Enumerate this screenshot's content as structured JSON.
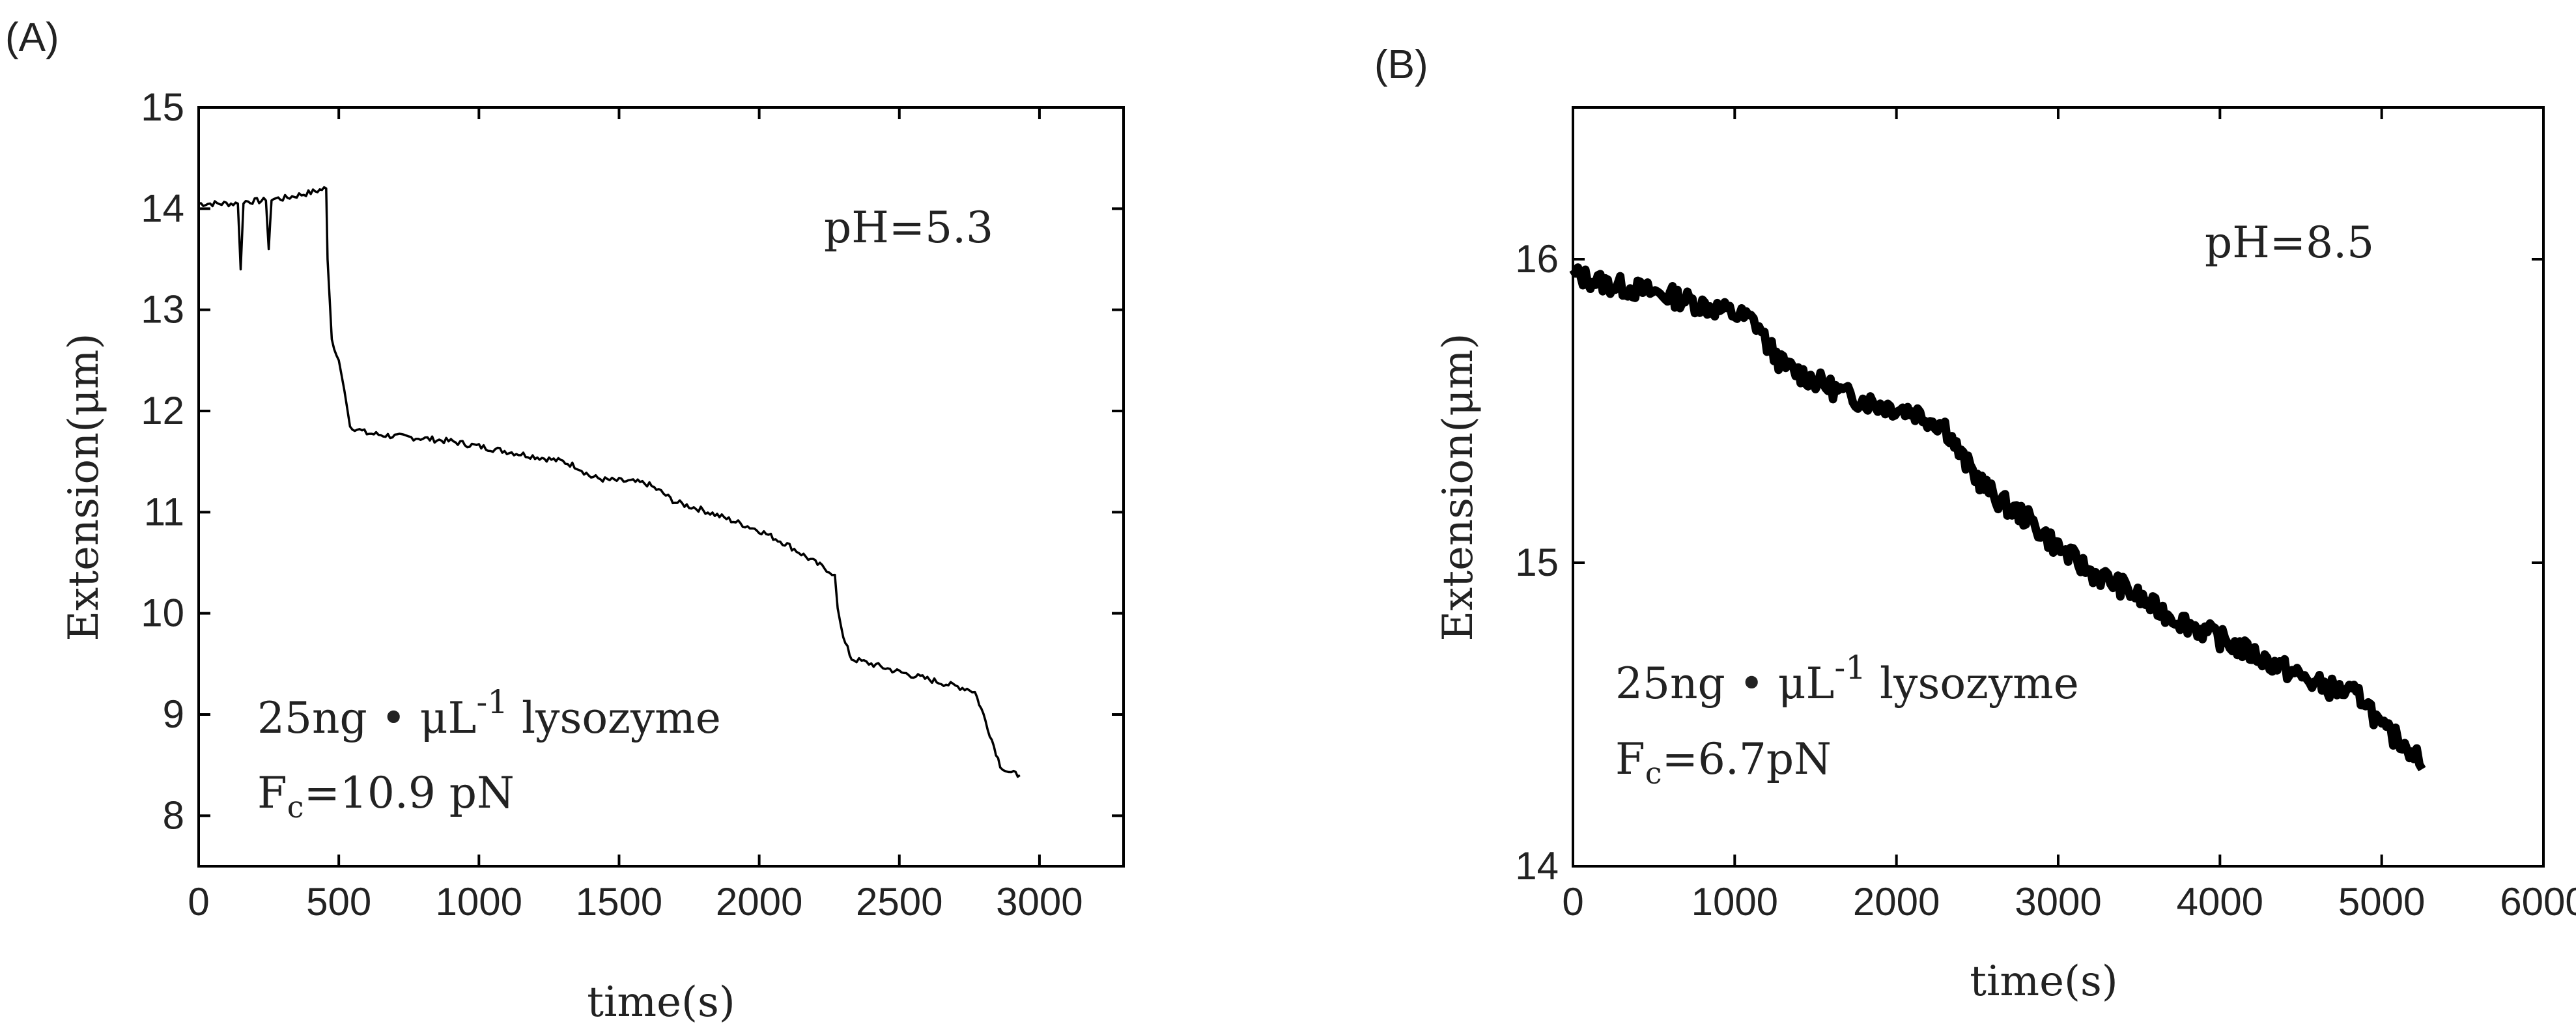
{
  "chart_data": [
    {
      "type": "line",
      "panel_label": "(A)",
      "xlabel": "time(s)",
      "ylabel": "Extension(μm)",
      "xlim": [
        0,
        3300
      ],
      "ylim": [
        7.5,
        15
      ],
      "xticks": [
        0,
        500,
        1000,
        1500,
        2000,
        2500,
        3000
      ],
      "yticks": [
        8,
        9,
        10,
        11,
        12,
        13,
        14,
        15
      ],
      "grid": false,
      "annotation_ph": "pH=5.3",
      "annotation_conc_prefix": "25ng • μL",
      "annotation_conc_exp": "-1",
      "annotation_conc_suffix": " lysozyme",
      "annotation_force_base": "F",
      "annotation_force_sub": "c",
      "annotation_force_value": "=10.9 pN",
      "noise": 0.03,
      "series": [
        {
          "name": "extension",
          "x": [
            0,
            140,
            150,
            160,
            240,
            250,
            260,
            300,
            350,
            400,
            440,
            455,
            460,
            475,
            500,
            520,
            540,
            600,
            700,
            800,
            900,
            1000,
            1100,
            1200,
            1300,
            1350,
            1400,
            1450,
            1550,
            1600,
            1650,
            1700,
            1800,
            1900,
            2000,
            2100,
            2200,
            2250,
            2270,
            2280,
            2300,
            2330,
            2400,
            2500,
            2600,
            2700,
            2750,
            2770,
            2800,
            2830,
            2860,
            2880,
            2900,
            2930
          ],
          "y": [
            14.05,
            14.05,
            13.4,
            14.07,
            14.08,
            13.6,
            14.1,
            14.1,
            14.13,
            14.16,
            14.19,
            14.2,
            13.5,
            12.7,
            12.5,
            12.2,
            11.85,
            11.78,
            11.75,
            11.73,
            11.7,
            11.65,
            11.6,
            11.55,
            11.5,
            11.45,
            11.35,
            11.32,
            11.3,
            11.28,
            11.2,
            11.1,
            11.02,
            10.92,
            10.82,
            10.68,
            10.5,
            10.42,
            10.38,
            10.05,
            9.75,
            9.55,
            9.5,
            9.42,
            9.35,
            9.28,
            9.25,
            9.22,
            9.0,
            8.75,
            8.5,
            8.45,
            8.42,
            8.4
          ]
        }
      ]
    },
    {
      "type": "line",
      "panel_label": "(B)",
      "xlabel": "time(s)",
      "ylabel": "Extension(μm)",
      "xlim": [
        0,
        6000
      ],
      "ylim": [
        14,
        16.5
      ],
      "xticks": [
        0,
        1000,
        2000,
        3000,
        4000,
        5000,
        6000
      ],
      "yticks": [
        14,
        15,
        16
      ],
      "grid": false,
      "annotation_ph": "pH=8.5",
      "annotation_conc_prefix": "25ng • μL",
      "annotation_conc_exp": "-1",
      "annotation_conc_suffix": " lysozyme",
      "annotation_force_base": "F",
      "annotation_force_sub": "c",
      "annotation_force_value": "=6.7pN",
      "noise": 0.035,
      "series": [
        {
          "name": "extension",
          "x": [
            0,
            200,
            400,
            600,
            800,
            1000,
            1100,
            1150,
            1200,
            1300,
            1500,
            1700,
            1900,
            2100,
            2300,
            2400,
            2500,
            2600,
            2700,
            2800,
            3000,
            3200,
            3400,
            3600,
            3800,
            4000,
            4200,
            4400,
            4600,
            4800,
            4900,
            4950,
            5000,
            5100,
            5200,
            5250
          ],
          "y": [
            15.95,
            15.92,
            15.9,
            15.88,
            15.85,
            15.82,
            15.8,
            15.78,
            15.72,
            15.65,
            15.6,
            15.55,
            15.52,
            15.5,
            15.45,
            15.35,
            15.28,
            15.22,
            15.18,
            15.15,
            15.05,
            14.97,
            14.92,
            14.85,
            14.8,
            14.75,
            14.7,
            14.65,
            14.6,
            14.57,
            14.55,
            14.5,
            14.45,
            14.42,
            14.38,
            14.32
          ]
        }
      ]
    }
  ]
}
